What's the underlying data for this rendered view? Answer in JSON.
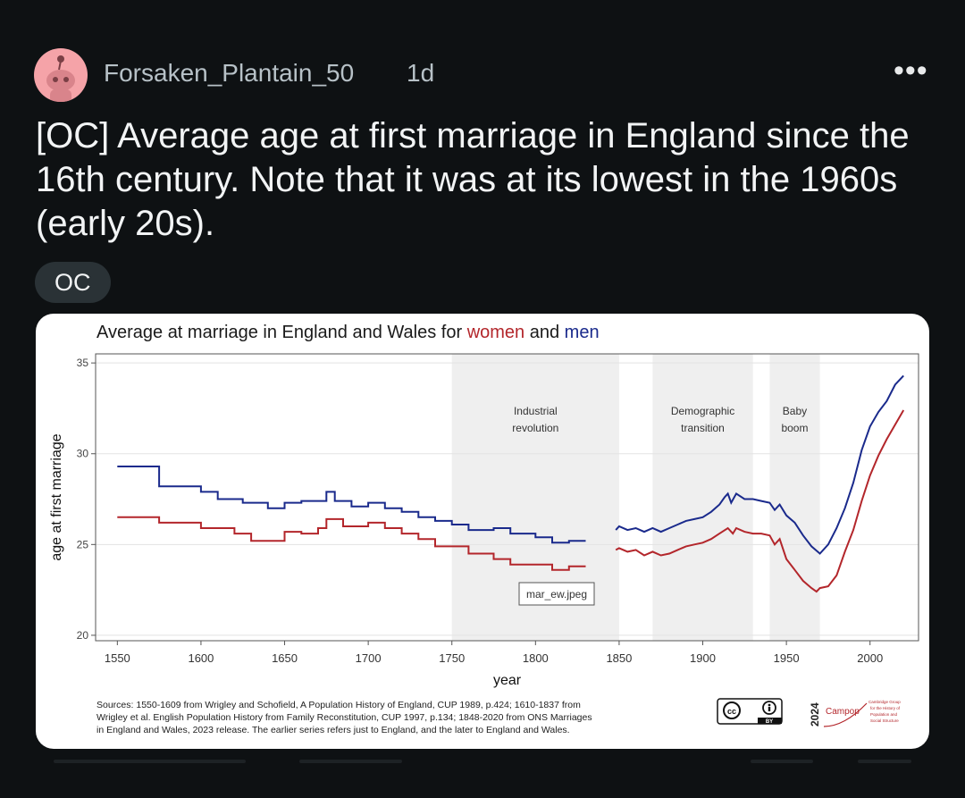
{
  "post": {
    "username": "Forsaken_Plantain_50",
    "age": "1d",
    "more_icon": "•••",
    "title": "[OC] Average age at first marriage in England since the 16th century. Note that it was at its lowest in the 1960s (early 20s).",
    "flair": "OC"
  },
  "colors": {
    "women": "#b3262b",
    "men": "#1a2a8c",
    "shade": "#efefef"
  },
  "chart_data": {
    "type": "line",
    "title_prefix": "Average at marriage in England and Wales for ",
    "title_women": "women",
    "title_and": " and ",
    "title_men": "men",
    "xlabel": "year",
    "ylabel": "age at first marriage",
    "xlim": [
      1537,
      2029
    ],
    "ylim": [
      19.7,
      35.5
    ],
    "x_ticks": [
      1550,
      1600,
      1650,
      1700,
      1750,
      1800,
      1850,
      1900,
      1950,
      2000
    ],
    "y_ticks": [
      20,
      25,
      30,
      35
    ],
    "shaded_periods": [
      {
        "x0": 1750,
        "x1": 1850,
        "label_line1": "Industrial",
        "label_line2": "revolution"
      },
      {
        "x0": 1870,
        "x1": 1930,
        "label_line1": "Demographic",
        "label_line2": "transition"
      },
      {
        "x0": 1940,
        "x1": 1970,
        "label_line1": "Baby",
        "label_line2": "boom"
      }
    ],
    "watermark": "mar_ew.jpeg",
    "series": [
      {
        "name": "men",
        "segments": [
          [
            [
              1550,
              29.3
            ],
            [
              1560,
              29.3
            ],
            [
              1575,
              29.3
            ],
            [
              1575,
              28.2
            ],
            [
              1600,
              28.2
            ],
            [
              1600,
              27.9
            ],
            [
              1610,
              27.9
            ],
            [
              1610,
              27.5
            ],
            [
              1625,
              27.5
            ],
            [
              1625,
              27.3
            ],
            [
              1640,
              27.3
            ],
            [
              1640,
              27.0
            ],
            [
              1650,
              27.0
            ],
            [
              1650,
              27.3
            ],
            [
              1660,
              27.3
            ],
            [
              1660,
              27.4
            ],
            [
              1675,
              27.4
            ],
            [
              1675,
              27.9
            ],
            [
              1680,
              27.9
            ],
            [
              1680,
              27.4
            ],
            [
              1690,
              27.4
            ],
            [
              1690,
              27.1
            ],
            [
              1700,
              27.1
            ],
            [
              1700,
              27.3
            ],
            [
              1710,
              27.3
            ],
            [
              1710,
              27.0
            ],
            [
              1720,
              27.0
            ],
            [
              1720,
              26.8
            ],
            [
              1730,
              26.8
            ],
            [
              1730,
              26.5
            ],
            [
              1740,
              26.5
            ],
            [
              1740,
              26.3
            ],
            [
              1750,
              26.3
            ],
            [
              1750,
              26.1
            ],
            [
              1760,
              26.1
            ],
            [
              1760,
              25.8
            ],
            [
              1775,
              25.8
            ],
            [
              1775,
              25.9
            ],
            [
              1785,
              25.9
            ],
            [
              1785,
              25.6
            ],
            [
              1800,
              25.6
            ],
            [
              1800,
              25.4
            ],
            [
              1810,
              25.4
            ],
            [
              1810,
              25.1
            ],
            [
              1820,
              25.1
            ],
            [
              1820,
              25.2
            ],
            [
              1830,
              25.2
            ]
          ],
          [
            [
              1848,
              25.8
            ],
            [
              1850,
              26.0
            ],
            [
              1855,
              25.8
            ],
            [
              1860,
              25.9
            ],
            [
              1865,
              25.7
            ],
            [
              1870,
              25.9
            ],
            [
              1875,
              25.7
            ],
            [
              1880,
              25.9
            ],
            [
              1885,
              26.1
            ],
            [
              1890,
              26.3
            ],
            [
              1895,
              26.4
            ],
            [
              1900,
              26.5
            ],
            [
              1905,
              26.8
            ],
            [
              1910,
              27.2
            ],
            [
              1913,
              27.6
            ],
            [
              1915,
              27.8
            ],
            [
              1917,
              27.3
            ],
            [
              1920,
              27.8
            ],
            [
              1925,
              27.5
            ],
            [
              1930,
              27.5
            ],
            [
              1935,
              27.4
            ],
            [
              1940,
              27.3
            ],
            [
              1943,
              26.9
            ],
            [
              1946,
              27.2
            ],
            [
              1950,
              26.6
            ],
            [
              1955,
              26.2
            ],
            [
              1960,
              25.5
            ],
            [
              1965,
              24.9
            ],
            [
              1970,
              24.5
            ],
            [
              1975,
              25.0
            ],
            [
              1980,
              25.9
            ],
            [
              1985,
              27.0
            ],
            [
              1990,
              28.4
            ],
            [
              1995,
              30.2
            ],
            [
              2000,
              31.5
            ],
            [
              2005,
              32.3
            ],
            [
              2010,
              32.9
            ],
            [
              2015,
              33.8
            ],
            [
              2020,
              34.3
            ]
          ]
        ]
      },
      {
        "name": "women",
        "segments": [
          [
            [
              1550,
              26.5
            ],
            [
              1575,
              26.5
            ],
            [
              1575,
              26.2
            ],
            [
              1600,
              26.2
            ],
            [
              1600,
              25.9
            ],
            [
              1620,
              25.9
            ],
            [
              1620,
              25.6
            ],
            [
              1630,
              25.6
            ],
            [
              1630,
              25.2
            ],
            [
              1650,
              25.2
            ],
            [
              1650,
              25.7
            ],
            [
              1660,
              25.7
            ],
            [
              1660,
              25.6
            ],
            [
              1670,
              25.6
            ],
            [
              1670,
              25.9
            ],
            [
              1675,
              25.9
            ],
            [
              1675,
              26.4
            ],
            [
              1685,
              26.4
            ],
            [
              1685,
              26.0
            ],
            [
              1700,
              26.0
            ],
            [
              1700,
              26.2
            ],
            [
              1710,
              26.2
            ],
            [
              1710,
              25.9
            ],
            [
              1720,
              25.9
            ],
            [
              1720,
              25.6
            ],
            [
              1730,
              25.6
            ],
            [
              1730,
              25.3
            ],
            [
              1740,
              25.3
            ],
            [
              1740,
              24.9
            ],
            [
              1760,
              24.9
            ],
            [
              1760,
              24.5
            ],
            [
              1775,
              24.5
            ],
            [
              1775,
              24.2
            ],
            [
              1785,
              24.2
            ],
            [
              1785,
              23.9
            ],
            [
              1800,
              23.9
            ],
            [
              1800,
              23.9
            ],
            [
              1810,
              23.9
            ],
            [
              1810,
              23.6
            ],
            [
              1820,
              23.6
            ],
            [
              1820,
              23.8
            ],
            [
              1830,
              23.8
            ]
          ],
          [
            [
              1848,
              24.7
            ],
            [
              1850,
              24.8
            ],
            [
              1855,
              24.6
            ],
            [
              1860,
              24.7
            ],
            [
              1865,
              24.4
            ],
            [
              1870,
              24.6
            ],
            [
              1875,
              24.4
            ],
            [
              1880,
              24.5
            ],
            [
              1885,
              24.7
            ],
            [
              1890,
              24.9
            ],
            [
              1895,
              25.0
            ],
            [
              1900,
              25.1
            ],
            [
              1905,
              25.3
            ],
            [
              1910,
              25.6
            ],
            [
              1915,
              25.9
            ],
            [
              1918,
              25.6
            ],
            [
              1920,
              25.9
            ],
            [
              1925,
              25.7
            ],
            [
              1930,
              25.6
            ],
            [
              1935,
              25.6
            ],
            [
              1940,
              25.5
            ],
            [
              1943,
              25.0
            ],
            [
              1946,
              25.3
            ],
            [
              1950,
              24.2
            ],
            [
              1955,
              23.6
            ],
            [
              1960,
              23.0
            ],
            [
              1965,
              22.6
            ],
            [
              1968,
              22.4
            ],
            [
              1970,
              22.6
            ],
            [
              1975,
              22.7
            ],
            [
              1980,
              23.3
            ],
            [
              1985,
              24.6
            ],
            [
              1990,
              25.8
            ],
            [
              1995,
              27.4
            ],
            [
              2000,
              28.8
            ],
            [
              2005,
              29.9
            ],
            [
              2010,
              30.8
            ],
            [
              2015,
              31.6
            ],
            [
              2020,
              32.4
            ]
          ]
        ]
      }
    ],
    "sources": [
      "Sources: 1550-1609 from Wrigley and Schofield, A Population History of England, CUP 1989, p.424; 1610-1837 from",
      "Wrigley et al. English Population History from Family Reconstitution, CUP 1997, p.134; 1848-2020 from ONS Marriages",
      "in England and Wales, 2023 release. The earlier series refers just to England, and the later to England and Wales."
    ],
    "license": {
      "cc": "cc",
      "by": "BY",
      "year": "2024",
      "org": "Campop",
      "org_lines": [
        "Cambridge Group",
        "for the History of",
        "Population and",
        "Social Structure"
      ]
    }
  }
}
